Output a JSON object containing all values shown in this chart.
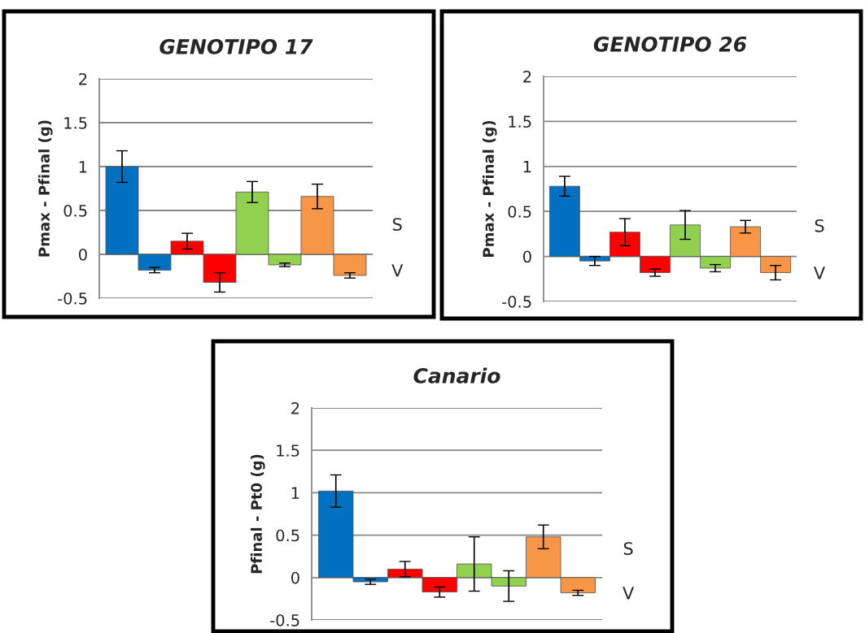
{
  "chart_data": [
    {
      "type": "bar",
      "title": "GENOTIPO 17",
      "ylabel": "Pmax - Pfinal (g)",
      "categories": [
        null,
        null,
        null,
        null,
        null,
        null,
        null,
        null
      ],
      "values": [
        1.0,
        -0.18,
        0.15,
        -0.32,
        0.71,
        -0.12,
        0.66,
        -0.24
      ],
      "errors": [
        0.18,
        0.03,
        0.09,
        0.11,
        0.12,
        0.02,
        0.14,
        0.03
      ],
      "colors": [
        "#0070c0",
        "#0070c0",
        "#ff0000",
        "#ff0000",
        "#92d050",
        "#92d050",
        "#f79646",
        "#f79646"
      ],
      "ylim": [
        -0.5,
        2
      ],
      "yticks": [
        -0.5,
        0,
        0.5,
        1,
        1.5,
        2
      ],
      "grid": "y",
      "annotations": [
        "S",
        "V"
      ]
    },
    {
      "type": "bar",
      "title": "GENOTIPO 26",
      "ylabel": "Pmax - Pfinal (g)",
      "categories": [
        null,
        null,
        null,
        null,
        null,
        null,
        null,
        null
      ],
      "values": [
        0.78,
        -0.05,
        0.27,
        -0.18,
        0.35,
        -0.13,
        0.33,
        -0.18
      ],
      "errors": [
        0.11,
        0.05,
        0.15,
        0.04,
        0.16,
        0.04,
        0.07,
        0.08
      ],
      "colors": [
        "#0070c0",
        "#0070c0",
        "#ff0000",
        "#ff0000",
        "#92d050",
        "#92d050",
        "#f79646",
        "#f79646"
      ],
      "ylim": [
        -0.5,
        2
      ],
      "yticks": [
        -0.5,
        0,
        0.5,
        1,
        1.5,
        2
      ],
      "grid": "y",
      "annotations": [
        "S",
        "V"
      ]
    },
    {
      "type": "bar",
      "title": "Canario",
      "ylabel": "Pfinal - Pt0 (g)",
      "categories": [
        null,
        null,
        null,
        null,
        null,
        null,
        null,
        null
      ],
      "values": [
        1.02,
        -0.05,
        0.1,
        -0.17,
        0.16,
        -0.1,
        0.48,
        -0.18
      ],
      "errors": [
        0.19,
        0.03,
        0.09,
        0.06,
        0.32,
        0.18,
        0.14,
        0.03
      ],
      "colors": [
        "#0070c0",
        "#0070c0",
        "#ff0000",
        "#ff0000",
        "#92d050",
        "#92d050",
        "#f79646",
        "#f79646"
      ],
      "ylim": [
        -0.5,
        2
      ],
      "yticks": [
        -0.5,
        0,
        0.5,
        1,
        1.5,
        2
      ],
      "grid": "y",
      "annotations": [
        "S",
        "V"
      ]
    }
  ]
}
